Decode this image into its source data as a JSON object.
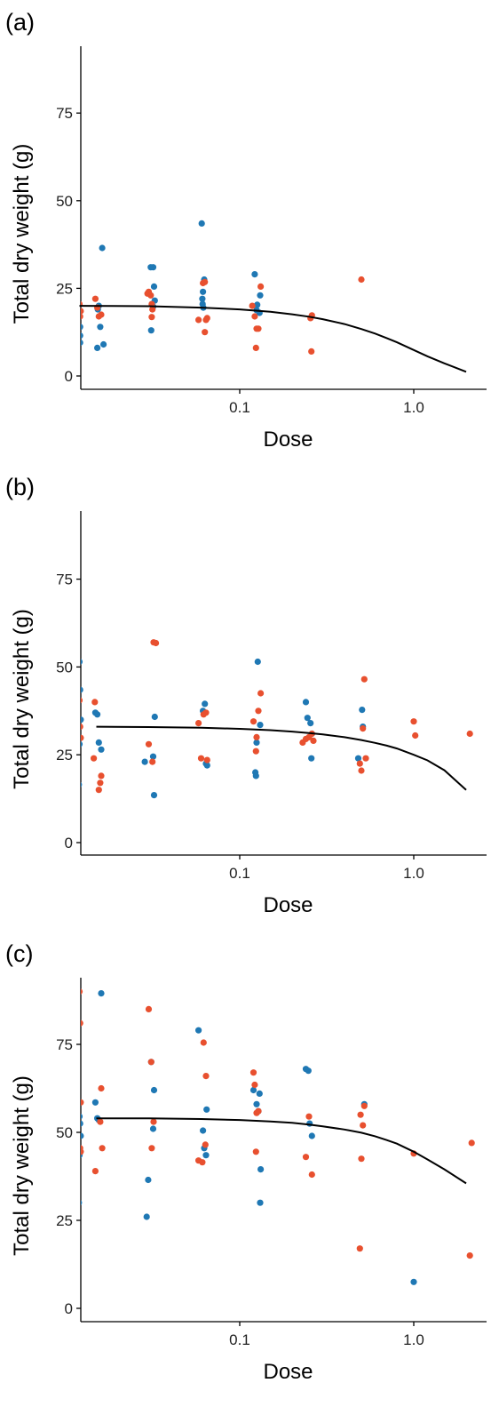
{
  "colors": {
    "blue": "#1f78b4",
    "red": "#e8502f",
    "fit": "#000000"
  },
  "chart_data": [
    {
      "type": "scatter",
      "panel_label": "(a)",
      "xlabel": "Dose",
      "ylabel": "Total dry weight (g)",
      "xscale": "log",
      "xlim": [
        0.012,
        2.6
      ],
      "ylim": [
        0,
        95
      ],
      "xticks": [
        0.1,
        1.0
      ],
      "xtick_labels": [
        "0.1",
        "1.0"
      ],
      "yticks": [
        0,
        25,
        50,
        75
      ],
      "ytick_labels": [
        "0",
        "25",
        "50",
        "75"
      ],
      "grid": false,
      "fit": {
        "x": [
          0.012,
          0.03,
          0.06,
          0.1,
          0.15,
          0.2,
          0.25,
          0.3,
          0.4,
          0.5,
          0.6,
          0.7,
          0.8,
          1.0,
          1.2,
          1.5,
          2.0
        ],
        "y": [
          20,
          19.9,
          19.5,
          19,
          18.3,
          17.6,
          16.9,
          16.2,
          14.8,
          13.4,
          12.1,
          10.8,
          9.6,
          7.4,
          5.6,
          3.6,
          1.2
        ]
      },
      "series": [
        {
          "color": "blue",
          "points": [
            [
              0.0121,
              14
            ],
            [
              0.0121,
              9.5
            ],
            [
              0.0121,
              11.5
            ],
            [
              0.0155,
              20
            ],
            [
              0.0162,
              36.5
            ],
            [
              0.0158,
              14
            ],
            [
              0.0153,
              19
            ],
            [
              0.0152,
              8
            ],
            [
              0.0165,
              9
            ],
            [
              0.0308,
              31
            ],
            [
              0.0318,
              31
            ],
            [
              0.0322,
              25.5
            ],
            [
              0.0325,
              21.5
            ],
            [
              0.031,
              13
            ],
            [
              0.0318,
              19.8
            ],
            [
              0.0605,
              43.5
            ],
            [
              0.0625,
              27.5
            ],
            [
              0.0615,
              24
            ],
            [
              0.061,
              22
            ],
            [
              0.0612,
              20.5
            ],
            [
              0.0618,
              19.5
            ],
            [
              0.122,
              29
            ],
            [
              0.126,
              20.3
            ],
            [
              0.131,
              23
            ],
            [
              0.125,
              18.8
            ],
            [
              0.13,
              18
            ]
          ]
        },
        {
          "color": "red",
          "points": [
            [
              0.012,
              20.5
            ],
            [
              0.0122,
              18.5
            ],
            [
              0.0121,
              17
            ],
            [
              0.0148,
              22
            ],
            [
              0.0152,
              19.5
            ],
            [
              0.0155,
              17
            ],
            [
              0.016,
              17.5
            ],
            [
              0.0295,
              23.5
            ],
            [
              0.03,
              24
            ],
            [
              0.0308,
              23
            ],
            [
              0.0312,
              20.5
            ],
            [
              0.0315,
              19
            ],
            [
              0.0312,
              16.8
            ],
            [
              0.058,
              16
            ],
            [
              0.0615,
              26.5
            ],
            [
              0.063,
              26.8
            ],
            [
              0.064,
              16
            ],
            [
              0.065,
              16.5
            ],
            [
              0.063,
              12.5
            ],
            [
              0.118,
              20
            ],
            [
              0.122,
              17
            ],
            [
              0.125,
              13.5
            ],
            [
              0.128,
              13.5
            ],
            [
              0.124,
              8
            ],
            [
              0.132,
              25.5
            ],
            [
              0.255,
              16.5
            ],
            [
              0.26,
              17.3
            ],
            [
              0.258,
              7
            ],
            [
              0.5,
              27.5
            ]
          ]
        }
      ]
    },
    {
      "type": "scatter",
      "panel_label": "(b)",
      "xlabel": "Dose",
      "ylabel": "Total dry weight (g)",
      "xscale": "log",
      "xlim": [
        0.012,
        2.6
      ],
      "ylim": [
        -4,
        95
      ],
      "xticks": [
        0.1,
        1.0
      ],
      "xtick_labels": [
        "0.1",
        "1.0"
      ],
      "yticks": [
        0,
        25,
        50,
        75
      ],
      "ytick_labels": [
        "0",
        "25",
        "50",
        "75"
      ],
      "grid": false,
      "fit": {
        "x": [
          0.015,
          0.03,
          0.06,
          0.1,
          0.15,
          0.2,
          0.25,
          0.3,
          0.4,
          0.5,
          0.6,
          0.7,
          0.8,
          1.0,
          1.2,
          1.5,
          2.0
        ],
        "y": [
          33,
          32.9,
          32.7,
          32.4,
          32,
          31.6,
          31.2,
          30.8,
          30,
          29.2,
          28.4,
          27.6,
          26.8,
          25,
          23.4,
          20.6,
          15
        ]
      },
      "series": [
        {
          "color": "blue",
          "points": [
            [
              0.012,
              51.5
            ],
            [
              0.0121,
              43.5
            ],
            [
              0.0122,
              35
            ],
            [
              0.012,
              28
            ],
            [
              0.0119,
              16.5
            ],
            [
              0.0148,
              37
            ],
            [
              0.0152,
              36.5
            ],
            [
              0.0155,
              28.5
            ],
            [
              0.016,
              26.5
            ],
            [
              0.0285,
              23
            ],
            [
              0.0325,
              35.8
            ],
            [
              0.0318,
              24.5
            ],
            [
              0.0322,
              13.5
            ],
            [
              0.063,
              39.5
            ],
            [
              0.0615,
              37.5
            ],
            [
              0.064,
              22.5
            ],
            [
              0.065,
              22
            ],
            [
              0.127,
              51.5
            ],
            [
              0.131,
              33.5
            ],
            [
              0.125,
              28.5
            ],
            [
              0.123,
              20
            ],
            [
              0.124,
              19
            ],
            [
              0.24,
              40
            ],
            [
              0.245,
              35.5
            ],
            [
              0.255,
              34
            ],
            [
              0.26,
              31
            ],
            [
              0.258,
              24
            ],
            [
              0.48,
              24
            ],
            [
              0.505,
              37.8
            ],
            [
              0.51,
              33
            ]
          ]
        },
        {
          "color": "red",
          "points": [
            [
              0.012,
              40.5
            ],
            [
              0.0121,
              33
            ],
            [
              0.0122,
              29.8
            ],
            [
              0.0147,
              40
            ],
            [
              0.0145,
              24
            ],
            [
              0.016,
              19
            ],
            [
              0.0158,
              17
            ],
            [
              0.0155,
              15
            ],
            [
              0.03,
              28
            ],
            [
              0.032,
              57
            ],
            [
              0.033,
              56.8
            ],
            [
              0.0315,
              23
            ],
            [
              0.058,
              34
            ],
            [
              0.06,
              24
            ],
            [
              0.062,
              36.5
            ],
            [
              0.064,
              37
            ],
            [
              0.065,
              23.5
            ],
            [
              0.12,
              34.5
            ],
            [
              0.125,
              30
            ],
            [
              0.128,
              37.5
            ],
            [
              0.132,
              42.5
            ],
            [
              0.124,
              26
            ],
            [
              0.23,
              28.5
            ],
            [
              0.24,
              29.5
            ],
            [
              0.25,
              30
            ],
            [
              0.26,
              31
            ],
            [
              0.265,
              29
            ],
            [
              0.49,
              22.5
            ],
            [
              0.5,
              20.5
            ],
            [
              0.51,
              32.5
            ],
            [
              0.52,
              46.5
            ],
            [
              0.53,
              24
            ],
            [
              1.0,
              34.5
            ],
            [
              1.02,
              30.5
            ],
            [
              2.1,
              31
            ]
          ]
        }
      ]
    },
    {
      "type": "scatter",
      "panel_label": "(c)",
      "xlabel": "Dose",
      "ylabel": "Total dry weight (g)",
      "xscale": "log",
      "xlim": [
        0.012,
        2.6
      ],
      "ylim": [
        -4,
        95
      ],
      "xticks": [
        0.1,
        1.0
      ],
      "xtick_labels": [
        "0.1",
        "1.0"
      ],
      "yticks": [
        0,
        25,
        50,
        75
      ],
      "ytick_labels": [
        "0",
        "25",
        "50",
        "75"
      ],
      "grid": false,
      "fit": {
        "x": [
          0.015,
          0.03,
          0.06,
          0.1,
          0.15,
          0.2,
          0.25,
          0.3,
          0.4,
          0.5,
          0.6,
          0.7,
          0.8,
          1.0,
          1.2,
          1.5,
          2.0
        ],
        "y": [
          54,
          54,
          53.8,
          53.5,
          53.1,
          52.7,
          52.2,
          51.7,
          50.8,
          49.9,
          48.9,
          47.8,
          46.8,
          44.5,
          42.3,
          39.5,
          35.5
        ]
      },
      "series": [
        {
          "color": "blue",
          "points": [
            [
              0.012,
              54.5
            ],
            [
              0.0121,
              52.5
            ],
            [
              0.0122,
              49
            ],
            [
              0.012,
              43.5
            ],
            [
              0.0119,
              30
            ],
            [
              0.0148,
              58.5
            ],
            [
              0.016,
              89.5
            ],
            [
              0.0152,
              54
            ],
            [
              0.0155,
              53.5
            ],
            [
              0.0292,
              26
            ],
            [
              0.0298,
              36.5
            ],
            [
              0.031,
              70
            ],
            [
              0.0322,
              62
            ],
            [
              0.0318,
              51
            ],
            [
              0.058,
              79
            ],
            [
              0.0615,
              50.5
            ],
            [
              0.0625,
              45.5
            ],
            [
              0.064,
              43.5
            ],
            [
              0.0645,
              56.5
            ],
            [
              0.12,
              62
            ],
            [
              0.125,
              58
            ],
            [
              0.128,
              56
            ],
            [
              0.13,
              61
            ],
            [
              0.132,
              39.5
            ],
            [
              0.131,
              30
            ],
            [
              0.24,
              68
            ],
            [
              0.248,
              67.5
            ],
            [
              0.252,
              52.5
            ],
            [
              0.26,
              49
            ],
            [
              0.52,
              58
            ],
            [
              1.0,
              7.5
            ]
          ]
        },
        {
          "color": "red",
          "points": [
            [
              0.012,
              90
            ],
            [
              0.0121,
              81
            ],
            [
              0.0122,
              58.5
            ],
            [
              0.0121,
              45.5
            ],
            [
              0.0122,
              44.5
            ],
            [
              0.0148,
              39
            ],
            [
              0.016,
              62.5
            ],
            [
              0.0158,
              53
            ],
            [
              0.0162,
              45.5
            ],
            [
              0.03,
              85
            ],
            [
              0.031,
              70
            ],
            [
              0.032,
              53
            ],
            [
              0.0312,
              45.5
            ],
            [
              0.058,
              42
            ],
            [
              0.061,
              41.5
            ],
            [
              0.062,
              75.5
            ],
            [
              0.064,
              66
            ],
            [
              0.0635,
              46.5
            ],
            [
              0.12,
              67
            ],
            [
              0.122,
              63.5
            ],
            [
              0.125,
              55.5
            ],
            [
              0.128,
              56
            ],
            [
              0.124,
              44.5
            ],
            [
              0.24,
              43
            ],
            [
              0.25,
              54.5
            ],
            [
              0.26,
              38
            ],
            [
              0.495,
              55
            ],
            [
              0.5,
              42.5
            ],
            [
              0.51,
              52
            ],
            [
              0.52,
              57.5
            ],
            [
              0.49,
              17
            ],
            [
              1.0,
              44
            ],
            [
              2.15,
              47
            ],
            [
              2.1,
              15
            ]
          ]
        }
      ]
    }
  ]
}
